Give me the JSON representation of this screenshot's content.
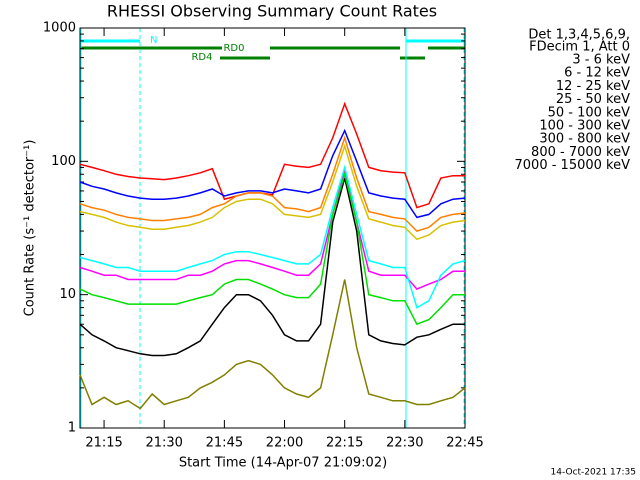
{
  "chart_data": {
    "type": "line",
    "title": "RHESSI Observing Summary Count Rates",
    "xlabel": "Start Time (14-Apr-07 21:09:02)",
    "ylabel": "Count Rate (s⁻¹ detector⁻¹)",
    "footer": "14-Oct-2021 17:35",
    "legend_header": [
      "Det 1,3,4,5,6,9,",
      "FDecim 1, Att 0"
    ],
    "annotations": [
      "N",
      "RD0",
      "RD4"
    ],
    "log_y": true,
    "xlim": [
      "21:09",
      "22:45"
    ],
    "xticks": [
      "21:15",
      "21:30",
      "21:45",
      "22:00",
      "22:15",
      "22:30",
      "22:45"
    ],
    "ylim": [
      1,
      1000
    ],
    "yticks": [
      1,
      10,
      100,
      1000
    ],
    "x": [
      "21:09",
      "21:12",
      "21:15",
      "21:18",
      "21:21",
      "21:24",
      "21:27",
      "21:30",
      "21:33",
      "21:36",
      "21:39",
      "21:42",
      "21:45",
      "21:48",
      "21:51",
      "21:54",
      "21:57",
      "22:00",
      "22:03",
      "22:06",
      "22:09",
      "22:12",
      "22:15",
      "22:18",
      "22:21",
      "22:24",
      "22:27",
      "22:30",
      "22:33",
      "22:36",
      "22:39",
      "22:42",
      "22:45"
    ],
    "series": [
      {
        "name": "3 - 6 keV",
        "color": "#000000",
        "values": [
          6,
          5,
          4.5,
          4,
          3.8,
          3.6,
          3.5,
          3.5,
          3.6,
          4,
          4.5,
          6,
          8,
          10,
          10,
          9,
          7,
          5,
          4.5,
          4.5,
          6,
          35,
          75,
          30,
          5,
          4.5,
          4.3,
          4.2,
          4.8,
          5,
          5.5,
          6,
          6
        ]
      },
      {
        "name": "6 - 12 keV",
        "color": "#ff00ff",
        "values": [
          16,
          15,
          14,
          14,
          13,
          13,
          13,
          13,
          13,
          14,
          14,
          15,
          17,
          18,
          18,
          17,
          16,
          15,
          14,
          14,
          17,
          40,
          85,
          35,
          15,
          14,
          14,
          14,
          11,
          12,
          13,
          15,
          15
        ]
      },
      {
        "name": "12 - 25 keV",
        "color": "#00e000",
        "values": [
          11,
          10,
          9.5,
          9,
          8.5,
          8.5,
          8.5,
          8.5,
          8.5,
          9,
          9.5,
          10,
          12,
          13,
          13,
          12,
          11,
          10,
          9.5,
          9.5,
          12,
          40,
          80,
          35,
          10,
          9.5,
          9,
          9,
          6,
          6.5,
          8,
          10,
          10
        ]
      },
      {
        "name": "25 - 50 keV",
        "color": "#00ffff",
        "values": [
          19,
          18,
          17,
          16,
          16,
          15,
          15,
          15,
          15,
          16,
          17,
          18,
          20,
          21,
          21,
          20,
          19,
          18,
          17,
          17,
          20,
          45,
          90,
          40,
          18,
          17,
          16,
          16,
          8,
          9,
          14,
          17,
          18
        ]
      },
      {
        "name": "50 - 100 keV",
        "color": "#d8c000",
        "values": [
          42,
          40,
          38,
          35,
          33,
          32,
          31,
          31,
          32,
          33,
          35,
          38,
          45,
          50,
          52,
          52,
          48,
          40,
          39,
          38,
          40,
          70,
          130,
          65,
          37,
          35,
          33,
          32,
          26,
          28,
          33,
          35,
          36
        ]
      },
      {
        "name": "100 - 300 keV",
        "color": "#ff0000",
        "values": [
          95,
          90,
          85,
          80,
          77,
          75,
          74,
          73,
          75,
          78,
          82,
          88,
          52,
          55,
          58,
          58,
          56,
          95,
          92,
          90,
          95,
          150,
          270,
          160,
          90,
          85,
          83,
          82,
          45,
          48,
          75,
          78,
          78
        ]
      },
      {
        "name": "300 - 800 keV",
        "color": "#0000ff",
        "values": [
          70,
          65,
          62,
          58,
          55,
          53,
          52,
          52,
          53,
          55,
          58,
          62,
          55,
          58,
          60,
          60,
          58,
          62,
          60,
          58,
          62,
          110,
          170,
          100,
          58,
          55,
          53,
          52,
          38,
          40,
          48,
          52,
          53
        ]
      },
      {
        "name": "800 - 7000 keV",
        "color": "#ff8000",
        "values": [
          48,
          45,
          43,
          40,
          38,
          37,
          36,
          36,
          37,
          38,
          40,
          45,
          48,
          55,
          58,
          58,
          55,
          45,
          44,
          42,
          45,
          80,
          150,
          75,
          42,
          40,
          38,
          37,
          30,
          32,
          38,
          40,
          41
        ]
      },
      {
        "name": "7000 - 15000 keV",
        "color": "#808000",
        "values": [
          2.5,
          1.5,
          1.7,
          1.5,
          1.6,
          1.4,
          1.8,
          1.5,
          1.6,
          1.7,
          2,
          2.2,
          2.5,
          3,
          3.2,
          3,
          2.5,
          2,
          1.8,
          1.7,
          2,
          5,
          13,
          4,
          1.8,
          1.7,
          1.6,
          1.6,
          1.5,
          1.5,
          1.6,
          1.7,
          2
        ]
      }
    ]
  }
}
